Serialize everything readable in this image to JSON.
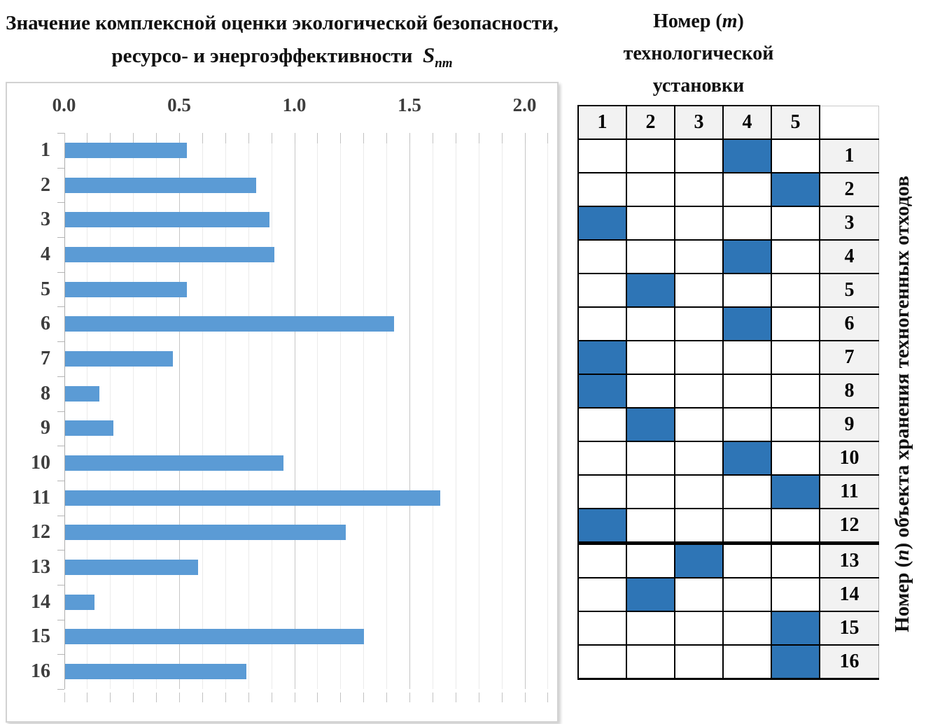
{
  "chart_data": [
    {
      "type": "bar",
      "orientation": "horizontal",
      "title": "Значение комплексной оценки экологической безопасности, ресурсо- и энергоэффективности",
      "title_symbol": "S",
      "title_symbol_sub": "nm",
      "categories": [
        "1",
        "2",
        "3",
        "4",
        "5",
        "6",
        "7",
        "8",
        "9",
        "10",
        "11",
        "12",
        "13",
        "14",
        "15",
        "16"
      ],
      "values": [
        0.53,
        0.83,
        0.89,
        0.91,
        0.53,
        1.43,
        0.47,
        0.15,
        0.21,
        0.95,
        1.63,
        1.22,
        0.58,
        0.13,
        1.3,
        0.79
      ],
      "xlabel": "",
      "ylabel": "",
      "xlim": [
        0,
        2.1
      ],
      "x_ticks": [
        "0.0",
        "0.5",
        "1.0",
        "1.5",
        "2.0"
      ],
      "x_tick_step_minor": 0.1,
      "x_tick_step_major": 0.5,
      "axis_labels_position": "top",
      "grid": true,
      "legend": false,
      "bar_color": "#5B9BD5"
    },
    {
      "type": "heatmap",
      "title_pre": "Номер (",
      "title_var": "m",
      "title_post": ")",
      "title_line2": "технологической",
      "title_line3": "установки",
      "col_headers": [
        "1",
        "2",
        "3",
        "4",
        "5"
      ],
      "row_labels": [
        "1",
        "2",
        "3",
        "4",
        "5",
        "6",
        "7",
        "8",
        "9",
        "10",
        "11",
        "12",
        "13",
        "14",
        "15",
        "16"
      ],
      "filled_column_per_row": [
        4,
        5,
        1,
        4,
        2,
        4,
        1,
        1,
        2,
        4,
        5,
        1,
        3,
        2,
        5,
        5
      ],
      "thick_divider_after_row": 12,
      "side_label_pre": "Номер (",
      "side_label_var": "n",
      "side_label_post": ") объекта хранения техногенных отходов",
      "fill_color": "#2E75B6",
      "header_bg": "#F2F2F2",
      "legend": false
    }
  ]
}
